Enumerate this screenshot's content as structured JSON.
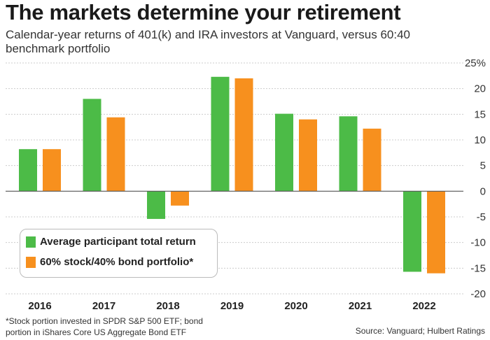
{
  "title": "The markets determine your retirement",
  "subtitle": "Calendar-year returns of 401(k) and IRA investors at Vanguard, versus 60:40 benchmark portfolio",
  "footnote": "*Stock portion invested in SPDR S&P 500 ETF; bond portion in iShares Core US Aggregate Bond ETF",
  "source": "Source: Vanguard; Hulbert Ratings",
  "colors": {
    "series1": "#4cbb47",
    "series2": "#f7901e",
    "grid": "#cccccc",
    "zero": "#555555"
  },
  "chart_data": {
    "type": "bar",
    "title": "The markets determine your retirement",
    "categories": [
      "2016",
      "2017",
      "2018",
      "2019",
      "2020",
      "2021",
      "2022"
    ],
    "series": [
      {
        "name": "Average participant total return",
        "values": [
          8.2,
          18.0,
          -5.4,
          22.3,
          15.1,
          14.6,
          -15.7
        ]
      },
      {
        "name": "60% stock/40% bond portfolio*",
        "values": [
          8.2,
          14.4,
          -2.8,
          22.0,
          14.0,
          12.2,
          -16.0
        ]
      }
    ],
    "ylim": [
      -20,
      25
    ],
    "yticks": [
      "25%",
      "20",
      "15",
      "10",
      "5",
      "0",
      "-5",
      "-10",
      "-15",
      "-20"
    ],
    "ytick_values": [
      25,
      20,
      15,
      10,
      5,
      0,
      -5,
      -10,
      -15,
      -20
    ],
    "grid": true,
    "legend": "bottom-left",
    "xlabel": "",
    "ylabel": ""
  }
}
